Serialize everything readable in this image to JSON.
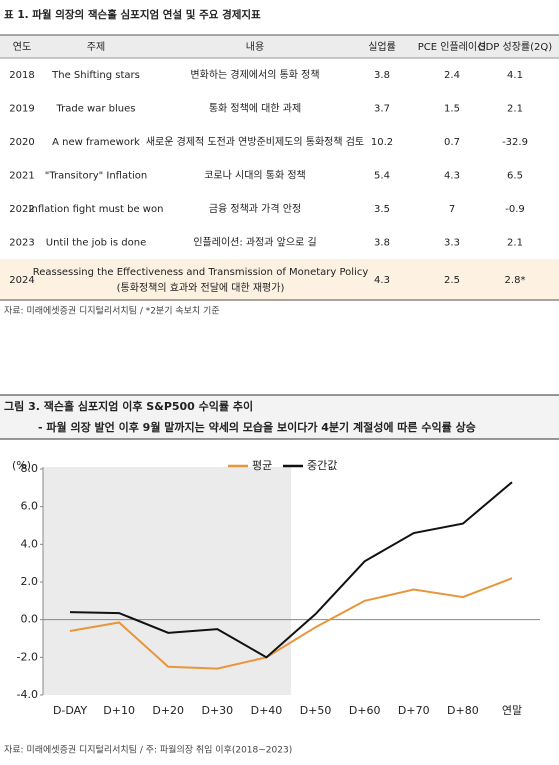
{
  "table": {
    "title": "표 1. 파월 의장의 잭슨홀 심포지엄 연설 및 주요 경제지표",
    "header": [
      "연도",
      "주제",
      "내용",
      "실업률",
      "PCE 인플레이션",
      "GDP 성장률(2Q)"
    ],
    "rows": [
      {
        "year": "2018",
        "topic": "The Shifting stars",
        "content": "변화하는 경제에서의 통화 정책",
        "unemployment": "3.8",
        "pce": "2.4",
        "gdp": "4.1"
      },
      {
        "year": "2019",
        "topic": "Trade war blues",
        "content": "통화 정책에 대한 과제",
        "unemployment": "3.7",
        "pce": "1.5",
        "gdp": "2.1"
      },
      {
        "year": "2020",
        "topic": "A new framework",
        "content": "새로운 경제적 도전과 연방준비제도의 통화정책 검토",
        "unemployment": "10.2",
        "pce": "0.7",
        "gdp": "-32.9"
      },
      {
        "year": "2021",
        "topic": "\"Transitory\" Inflation",
        "content": "코로나 시대의 통화 정책",
        "unemployment": "5.4",
        "pce": "4.3",
        "gdp": "6.5"
      },
      {
        "year": "2022",
        "topic": "Inflation fight must be won",
        "content": "금융 정책과 가격 안정",
        "unemployment": "3.5",
        "pce": "7",
        "gdp": "-0.9"
      },
      {
        "year": "2023",
        "topic": "Until the job is done",
        "content": "인플레이션: 과정과 앞으로 길",
        "unemployment": "3.8",
        "pce": "3.3",
        "gdp": "2.1"
      },
      {
        "year": "2024",
        "topic": [
          "Reassessing the Effectiveness and Transmission of Monetary Policy",
          "(통화정책의 효과와 전달에 대한 재평가)"
        ],
        "unemployment": "4.3",
        "pce": "2.5",
        "gdp": "2.8*",
        "highlight": true
      }
    ],
    "source": "자료: 미래에셋증권 디지털리서치팀 / *2분기 속보치 기준"
  },
  "chart_data": {
    "type": "line",
    "title": "그림 3. 잭슨홀 심포지엄 이후 S&P500 수익률 추이",
    "subtitle": "- 파월 의장 발언 이후 9월 말까지는 약세의 모습을 보이다가 4분기 계절성에 따른 수익률 상승",
    "y_label": "(%)",
    "categories": [
      "D-DAY",
      "D+10",
      "D+20",
      "D+30",
      "D+40",
      "D+50",
      "D+60",
      "D+70",
      "D+80",
      "연말"
    ],
    "series": [
      {
        "name": "평균",
        "color": "#e8963c",
        "values": [
          -0.6,
          -0.15,
          -2.5,
          -2.6,
          -2.0,
          -0.4,
          1.0,
          1.6,
          1.2,
          2.2
        ]
      },
      {
        "name": "중간값",
        "color": "#111111",
        "values": [
          0.4,
          0.35,
          -0.7,
          -0.5,
          -2.0,
          0.3,
          3.1,
          4.6,
          5.1,
          7.3
        ]
      }
    ],
    "ylim": [
      -4,
      8
    ],
    "yticks": [
      {
        "value": -4,
        "label": "-4.0"
      },
      {
        "value": -2,
        "label": "-2.0"
      },
      {
        "value": 0,
        "label": "0.0"
      },
      {
        "value": 2,
        "label": "2.0"
      },
      {
        "value": 4,
        "label": "4.0"
      },
      {
        "value": 6,
        "label": "6.0"
      },
      {
        "value": 8,
        "label": "8.0"
      }
    ],
    "source": "자료: 미래에셋증권 디지털리서치팀 / 주: 파월의장 취임 이후(2018~2023)"
  }
}
